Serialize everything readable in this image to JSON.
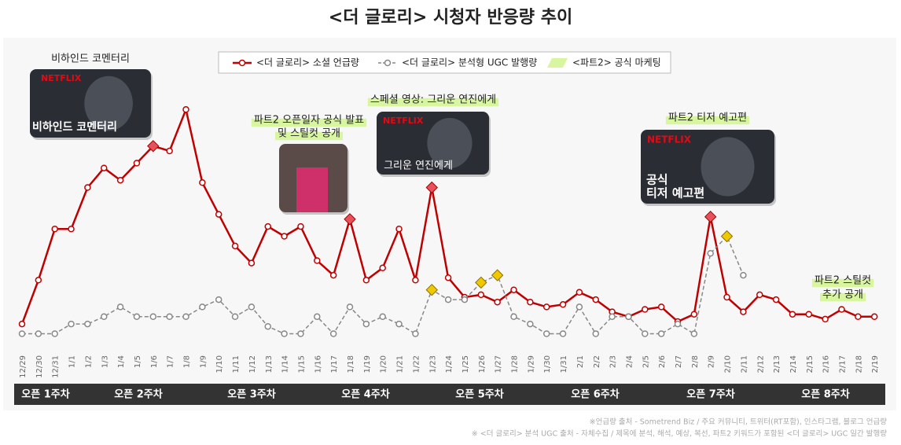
{
  "chart_data": {
    "type": "line",
    "title": "<더 글로리> 시청자 반응량 추이",
    "categories": [
      "12/29",
      "12/30",
      "12/31",
      "1/1",
      "1/2",
      "1/3",
      "1/4",
      "1/5",
      "1/6",
      "1/7",
      "1/8",
      "1/9",
      "1/10",
      "1/11",
      "1/12",
      "1/13",
      "1/14",
      "1/15",
      "1/16",
      "1/17",
      "1/18",
      "1/19",
      "1/20",
      "1/21",
      "1/22",
      "1/23",
      "1/24",
      "1/25",
      "1/26",
      "1/27",
      "1/28",
      "1/29",
      "1/30",
      "1/31",
      "2/1",
      "2/2",
      "2/3",
      "2/4",
      "2/5",
      "2/6",
      "2/7",
      "2/8",
      "2/9",
      "2/10",
      "2/11",
      "2/12",
      "2/13",
      "2/14",
      "2/15",
      "2/16",
      "2/17",
      "2/18",
      "2/19"
    ],
    "ylim": [
      0,
      100
    ],
    "series": [
      {
        "name": "<더 글로리> 소셜 언급량",
        "color": "#c00000",
        "dash": false,
        "highlight": [
          8,
          20,
          25,
          42
        ],
        "highlight_color": "#e8505a",
        "values": [
          9,
          27,
          48,
          48,
          65,
          73,
          68,
          75,
          82,
          80,
          97,
          67,
          54,
          41,
          34,
          49,
          45,
          49,
          35,
          29,
          52,
          27,
          32,
          48,
          27,
          65,
          28,
          20,
          21,
          18,
          23,
          18,
          16,
          17,
          22,
          19,
          14,
          12,
          15,
          16,
          10,
          13,
          53,
          20,
          14,
          21,
          19,
          13,
          13,
          11,
          15,
          12,
          12
        ]
      },
      {
        "name": "<더 글로리> 분석형 UGC 발행량",
        "color": "#888888",
        "dash": true,
        "highlight": [
          25,
          28,
          29,
          43
        ],
        "highlight_color": "#f0c800",
        "values": [
          5,
          5,
          5,
          9,
          9,
          12,
          16,
          12,
          12,
          12,
          12,
          16,
          19,
          12,
          16,
          8,
          5,
          5,
          12,
          5,
          16,
          9,
          12,
          9,
          5,
          23,
          19,
          19,
          26,
          29,
          12,
          9,
          5,
          5,
          16,
          5,
          12,
          12,
          5,
          5,
          9,
          5,
          38,
          45,
          29,
          null,
          null,
          null,
          null,
          null,
          null,
          null,
          null
        ]
      }
    ],
    "marketing": {
      "name": "<파트2> 공식 마케팅",
      "color": "#d8f5a0"
    },
    "weeks": [
      "오픈 1주차",
      "오픈 2주차",
      "오픈 3주차",
      "오픈 4주차",
      "오픈 5주차",
      "오픈 6주차",
      "오픈 7주차",
      "오픈 8주차"
    ],
    "annotations": [
      {
        "label": [
          "비하인드 코멘터리"
        ],
        "image_text": [
          "NETFLIX",
          "비하인드 코멘터리"
        ]
      },
      {
        "label": [
          "파트2 오픈일자 공식 발표",
          "및 스틸컷 공개"
        ],
        "image_text": []
      },
      {
        "label": [
          "스페셜 영상: 그리운 연진에게"
        ],
        "image_text": [
          "NETFLIX",
          "그리운 연진에게"
        ]
      },
      {
        "label": [
          "파트2 티저 예고편"
        ],
        "image_text": [
          "NETFLIX",
          "공식",
          "티저 예고편"
        ]
      },
      {
        "label": [
          "파트2 스틸컷",
          "추가 공개"
        ],
        "image_text": []
      }
    ],
    "footnotes": [
      "※언급량 출처 - Sometrend Biz / 주요 커뮤니티, 트위터(RT포함), 인스타그램, 블로그 언급량",
      "※ <더 글로리> 분석 UGC 출처 - 자체수집 / 제목에 분석, 해석, 예상, 복선, 파트2 키워드가 포함된 <더 글로리> UGC 일간 발행량"
    ]
  }
}
